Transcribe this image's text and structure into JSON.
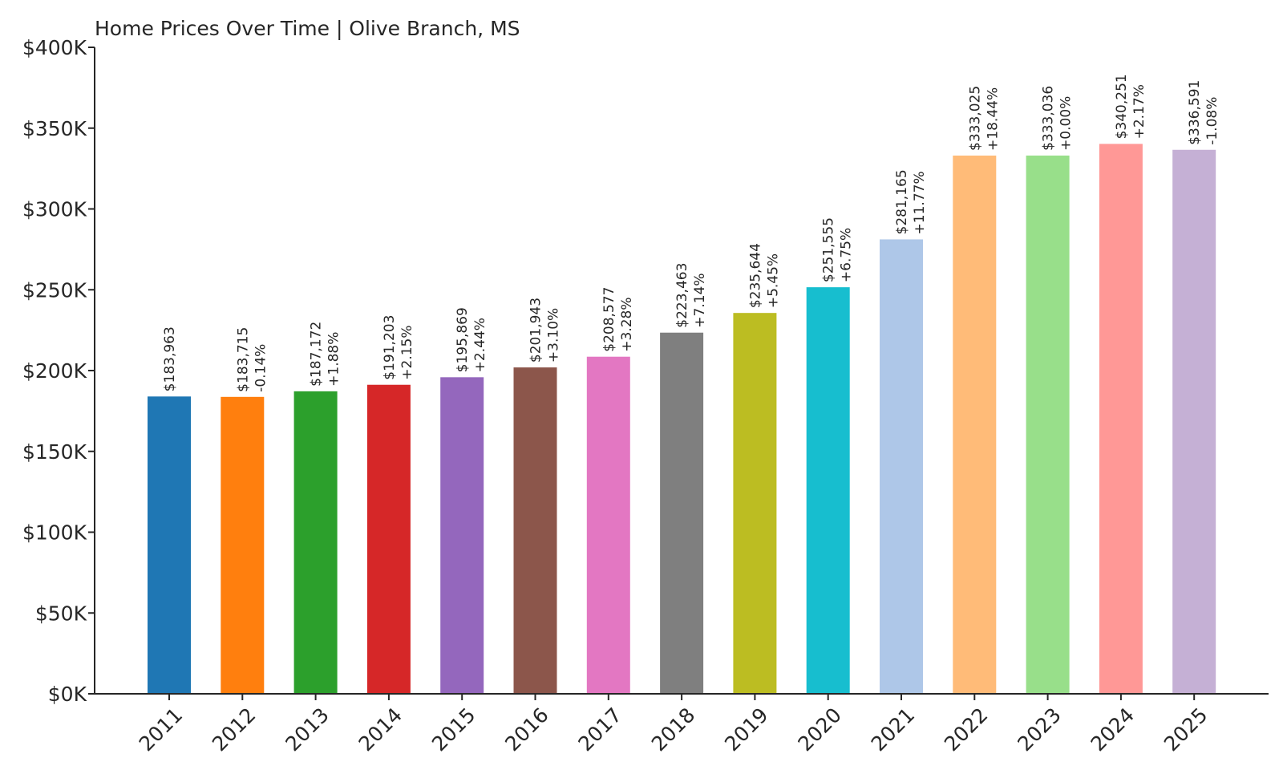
{
  "chart_data": {
    "type": "bar",
    "title": "Home Prices Over Time | Olive Branch, MS",
    "xlabel": "",
    "ylabel": "",
    "ylim": [
      0,
      400000
    ],
    "yticks": [
      0,
      50000,
      100000,
      150000,
      200000,
      250000,
      300000,
      350000,
      400000
    ],
    "ytick_labels": [
      "$0K",
      "$50K",
      "$100K",
      "$150K",
      "$200K",
      "$250K",
      "$300K",
      "$350K",
      "$400K"
    ],
    "grid": false,
    "categories": [
      "2011",
      "2012",
      "2013",
      "2014",
      "2015",
      "2016",
      "2017",
      "2018",
      "2019",
      "2020",
      "2021",
      "2022",
      "2023",
      "2024",
      "2025"
    ],
    "values": [
      183963,
      183715,
      187172,
      191203,
      195869,
      201943,
      208577,
      223463,
      235644,
      251555,
      281165,
      333025,
      333036,
      340251,
      336591
    ],
    "value_labels": [
      "$183,963",
      "$183,715",
      "$187,172",
      "$191,203",
      "$195,869",
      "$201,943",
      "$208,577",
      "$223,463",
      "$235,644",
      "$251,555",
      "$281,165",
      "$333,025",
      "$333,036",
      "$340,251",
      "$336,591"
    ],
    "change_labels": [
      "",
      "-0.14%",
      "+1.88%",
      "+2.15%",
      "+2.44%",
      "+3.10%",
      "+3.28%",
      "+7.14%",
      "+5.45%",
      "+6.75%",
      "+11.77%",
      "+18.44%",
      "+0.00%",
      "+2.17%",
      "-1.08%"
    ],
    "colors": [
      "#1f77b4",
      "#ff7f0e",
      "#2ca02c",
      "#d62728",
      "#9467bd",
      "#8c564b",
      "#e377c2",
      "#7f7f7f",
      "#bcbd22",
      "#17becf",
      "#aec7e8",
      "#ffbb78",
      "#98df8a",
      "#ff9896",
      "#c5b0d5"
    ]
  }
}
